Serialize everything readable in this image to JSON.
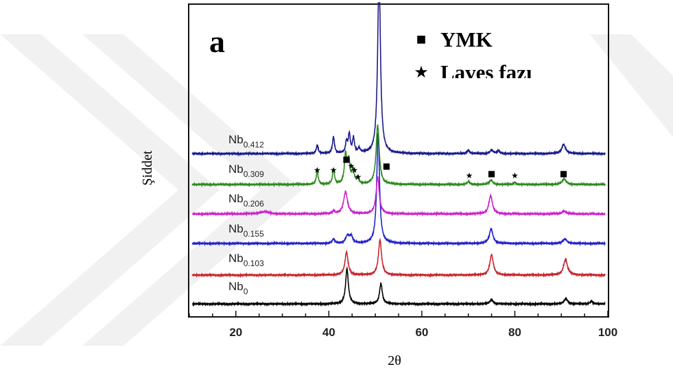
{
  "panel_letter": "a",
  "legend": [
    {
      "symbol": "■",
      "symbol_name": "square-marker-icon",
      "label": "YMK"
    },
    {
      "symbol": "★",
      "symbol_name": "star-marker-icon",
      "label": "Laves fazı"
    }
  ],
  "chart_data": {
    "type": "line",
    "title": "",
    "xlabel": "2θ",
    "ylabel": "Şiddet",
    "xlim": [
      10,
      100
    ],
    "xticks": [
      20,
      40,
      60,
      80,
      100
    ],
    "grid": false,
    "y_ticks_shown": false,
    "legend_placement": "top-right",
    "series": [
      {
        "name": "Nb0",
        "label_main": "Nb",
        "label_sub": "0",
        "color": "#000000",
        "peaks": [
          {
            "x": 43.9,
            "height": 0.95,
            "width": 0.35
          },
          {
            "x": 51.2,
            "height": 0.55,
            "width": 0.35
          },
          {
            "x": 75.0,
            "height": 0.12,
            "width": 0.4
          },
          {
            "x": 91.0,
            "height": 0.14,
            "width": 0.45
          },
          {
            "x": 96.5,
            "height": 0.08,
            "width": 0.3
          }
        ]
      },
      {
        "name": "Nb0.103",
        "label_main": "Nb",
        "label_sub": "0.103",
        "color": "#c8252d",
        "peaks": [
          {
            "x": 43.8,
            "height": 0.62,
            "width": 0.4
          },
          {
            "x": 51.0,
            "height": 0.95,
            "width": 0.4
          },
          {
            "x": 75.0,
            "height": 0.55,
            "width": 0.45
          },
          {
            "x": 90.9,
            "height": 0.42,
            "width": 0.5
          }
        ]
      },
      {
        "name": "Nb0.155",
        "label_main": "Nb",
        "label_sub": "0.155",
        "color": "#2222cc",
        "peaks": [
          {
            "x": 41.0,
            "height": 0.12,
            "width": 0.3
          },
          {
            "x": 44.0,
            "height": 0.2,
            "width": 0.45
          },
          {
            "x": 44.8,
            "height": 0.18,
            "width": 0.4
          },
          {
            "x": 50.6,
            "height": 3.0,
            "width": 0.35
          },
          {
            "x": 74.9,
            "height": 0.4,
            "width": 0.45
          },
          {
            "x": 90.8,
            "height": 0.12,
            "width": 0.5
          }
        ]
      },
      {
        "name": "Nb0.206",
        "label_main": "Nb",
        "label_sub": "0.206",
        "color": "#cc22cc",
        "peaks": [
          {
            "x": 26.0,
            "height": 0.06,
            "width": 1.2
          },
          {
            "x": 41.0,
            "height": 0.08,
            "width": 0.3
          },
          {
            "x": 43.6,
            "height": 0.6,
            "width": 0.5
          },
          {
            "x": 50.5,
            "height": 1.0,
            "width": 0.4
          },
          {
            "x": 74.8,
            "height": 0.5,
            "width": 0.45
          },
          {
            "x": 90.6,
            "height": 0.08,
            "width": 0.5
          }
        ]
      },
      {
        "name": "Nb0.309",
        "label_main": "Nb",
        "label_sub": "0.309",
        "color": "#2e8a1f",
        "peaks": [
          {
            "x": 37.5,
            "height": 0.35,
            "width": 0.25
          },
          {
            "x": 41.0,
            "height": 0.4,
            "width": 0.25
          },
          {
            "x": 43.6,
            "height": 0.8,
            "width": 0.3
          },
          {
            "x": 44.3,
            "height": 0.6,
            "width": 0.3
          },
          {
            "x": 45.2,
            "height": 0.35,
            "width": 0.3
          },
          {
            "x": 46.2,
            "height": 0.15,
            "width": 0.3
          },
          {
            "x": 50.5,
            "height": 1.6,
            "width": 0.4
          },
          {
            "x": 70.0,
            "height": 0.08,
            "width": 0.3
          },
          {
            "x": 74.9,
            "height": 0.12,
            "width": 0.4
          },
          {
            "x": 80.0,
            "height": 0.06,
            "width": 0.3
          },
          {
            "x": 90.6,
            "height": 0.15,
            "width": 0.5
          }
        ]
      },
      {
        "name": "Nb0.412",
        "label_main": "Nb",
        "label_sub": "0.412",
        "color": "#1a1a8c",
        "peaks": [
          {
            "x": 37.5,
            "height": 0.22,
            "width": 0.25
          },
          {
            "x": 41.0,
            "height": 0.45,
            "width": 0.25
          },
          {
            "x": 43.8,
            "height": 0.3,
            "width": 0.25
          },
          {
            "x": 44.4,
            "height": 0.5,
            "width": 0.25
          },
          {
            "x": 45.3,
            "height": 0.4,
            "width": 0.25
          },
          {
            "x": 46.5,
            "height": 0.12,
            "width": 0.3
          },
          {
            "x": 50.8,
            "height": 5.0,
            "width": 0.35
          },
          {
            "x": 70.0,
            "height": 0.1,
            "width": 0.3
          },
          {
            "x": 75.0,
            "height": 0.1,
            "width": 0.4
          },
          {
            "x": 76.5,
            "height": 0.08,
            "width": 0.3
          },
          {
            "x": 90.5,
            "height": 0.25,
            "width": 0.5
          }
        ]
      }
    ],
    "peak_markers": [
      {
        "x": 37.5,
        "symbol": "★",
        "series": "Nb0.309"
      },
      {
        "x": 41.0,
        "symbol": "★",
        "series": "Nb0.309"
      },
      {
        "x": 43.8,
        "symbol": "■",
        "series": "Nb0.309"
      },
      {
        "x": 44.8,
        "symbol": "★",
        "series": "Nb0.309"
      },
      {
        "x": 45.5,
        "symbol": "★",
        "series": "Nb0.309"
      },
      {
        "x": 46.3,
        "symbol": "★",
        "series": "Nb0.309"
      },
      {
        "x": 52.4,
        "symbol": "■",
        "series": "Nb0.309"
      },
      {
        "x": 70.2,
        "symbol": "★",
        "series": "Nb0.309"
      },
      {
        "x": 75.0,
        "symbol": "■",
        "series": "Nb0.309"
      },
      {
        "x": 80.0,
        "symbol": "★",
        "series": "Nb0.309"
      },
      {
        "x": 90.5,
        "symbol": "■",
        "series": "Nb0.309"
      }
    ]
  }
}
